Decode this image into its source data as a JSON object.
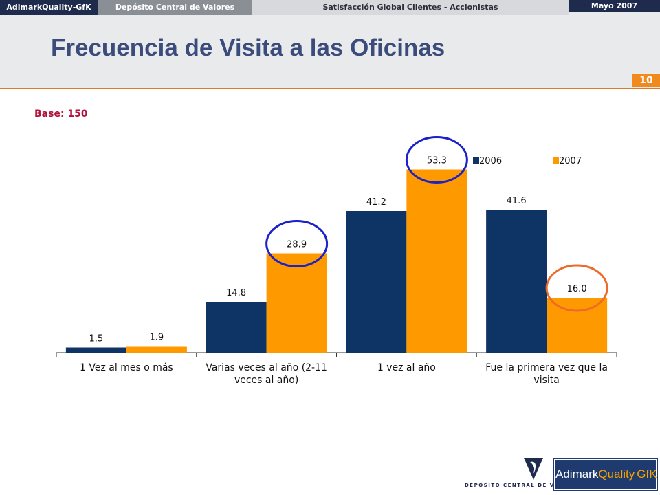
{
  "header": {
    "brand": "AdimarkQuality-GfK",
    "client": "Depósito Central de Valores",
    "study": "Satisfacción Global Clientes - Accionistas",
    "date": "Mayo 2007",
    "page_number": "10"
  },
  "title": "Frecuencia de Visita a las Oficinas",
  "base_label": "Base: 150",
  "chart_data": {
    "type": "bar",
    "categories": [
      [
        "1 Vez al mes o más"
      ],
      [
        "Varias veces al año (2-11",
        "veces al año)"
      ],
      [
        "1 vez al año"
      ],
      [
        "Fue la primera vez que la",
        "visita"
      ]
    ],
    "series": [
      {
        "name": "2006",
        "color": "#0e3465",
        "values": [
          1.5,
          14.8,
          41.2,
          41.6
        ],
        "labels": [
          "1.5",
          "14.8",
          "41.2",
          "41.6"
        ]
      },
      {
        "name": "2007",
        "color": "#ff9900",
        "values": [
          1.9,
          28.9,
          53.3,
          16.0
        ],
        "labels": [
          "1.9",
          "28.9",
          "53.3",
          "16.0"
        ]
      }
    ],
    "ylim": [
      0,
      60
    ],
    "legend_position": "top-right",
    "highlight_circles": [
      {
        "series": 1,
        "category": 1,
        "color": "#1a22c8"
      },
      {
        "series": 1,
        "category": 2,
        "color": "#1a22c8"
      },
      {
        "series": 1,
        "category": 3,
        "color": "#ee6a2a"
      }
    ]
  },
  "logos": {
    "dcv": "DEPÓSITO CENTRAL DE VALORES",
    "gfk_adimark": "Adimark",
    "gfk_quality": "Quality",
    "gfk_gfk": "GfK"
  }
}
